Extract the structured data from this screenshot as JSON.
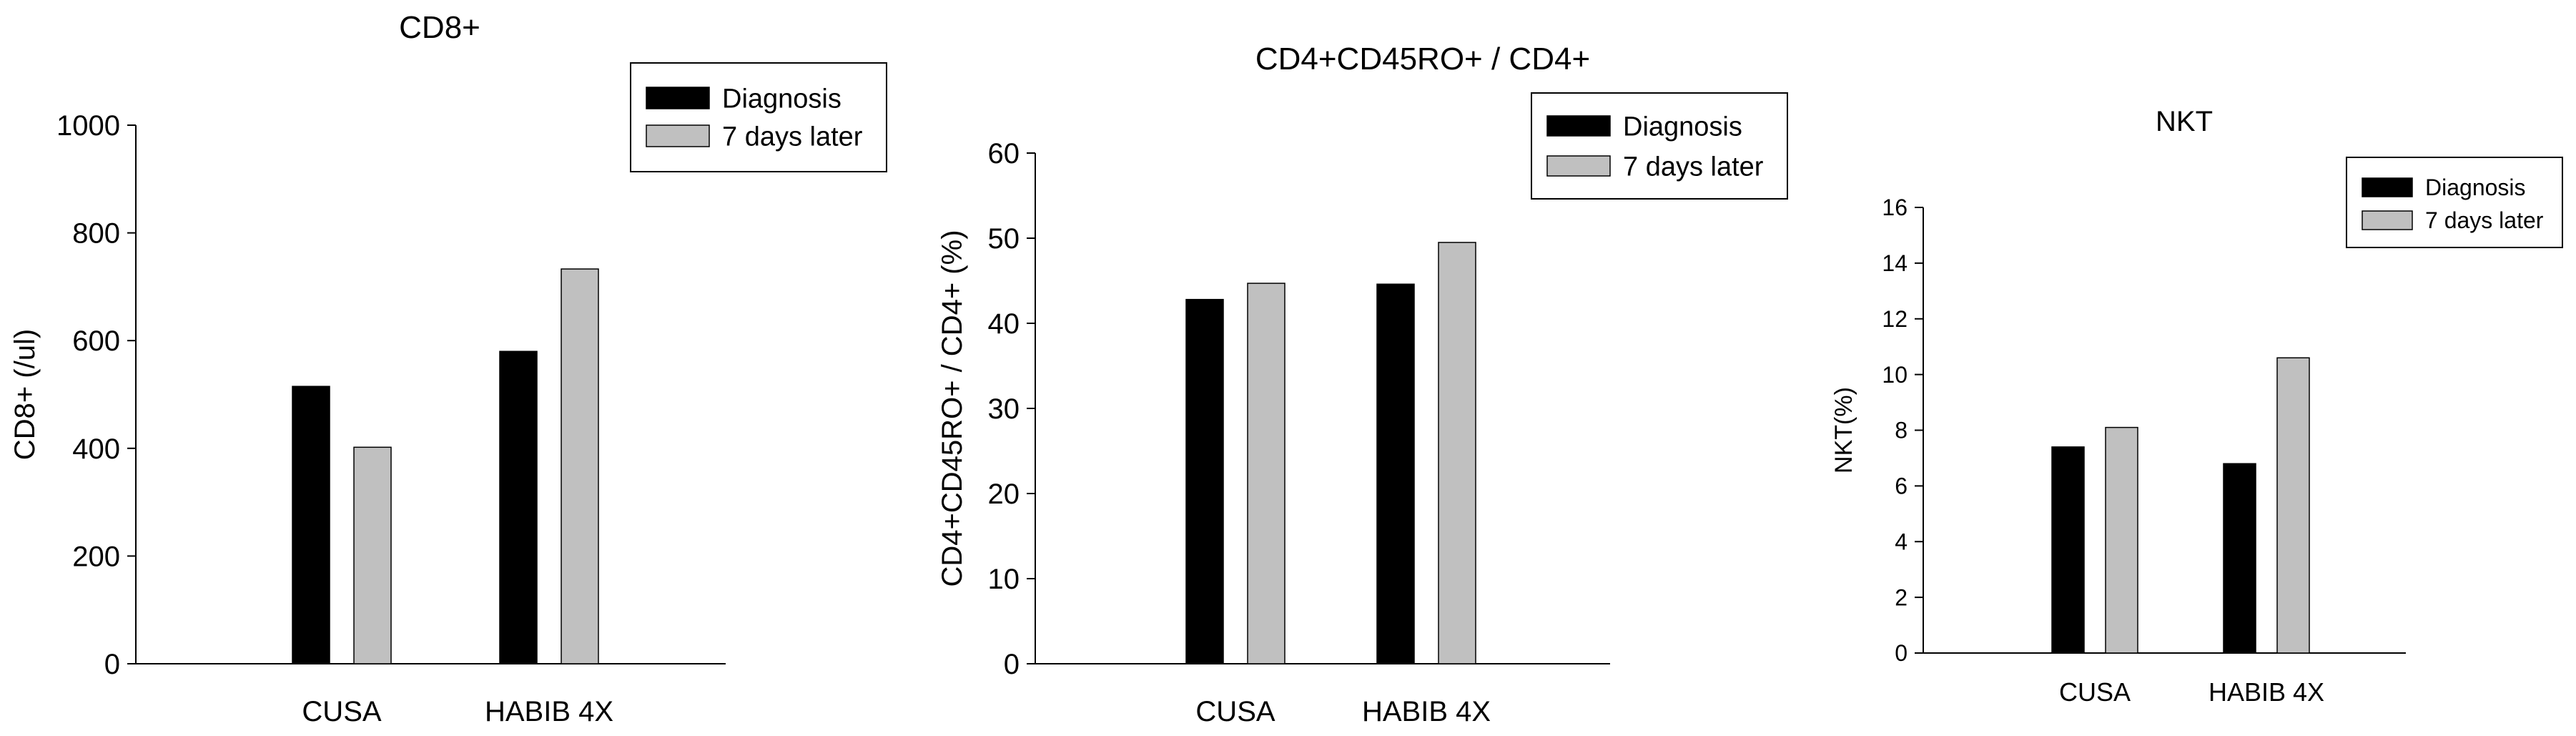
{
  "chart_data": [
    {
      "type": "bar",
      "title": "CD8+",
      "xlabel": "",
      "ylabel": "CD8+ (/ul)",
      "categories": [
        "CUSA",
        "HABIB 4X"
      ],
      "series": [
        {
          "name": "Diagnosis",
          "values": [
            515,
            580
          ],
          "color": "#000000"
        },
        {
          "name": "7 days later",
          "values": [
            402,
            733
          ],
          "color": "#c0c0c0"
        }
      ],
      "ylim": [
        0,
        1000
      ],
      "yticks": [
        0,
        200,
        400,
        600,
        800,
        1000
      ],
      "grid": false,
      "legend": "top-right"
    },
    {
      "type": "bar",
      "title": "CD4+CD45RO+ / CD4+",
      "xlabel": "",
      "ylabel": "CD4+CD45RO+ / CD4+ (%)",
      "categories": [
        "CUSA",
        "HABIB 4X"
      ],
      "series": [
        {
          "name": "Diagnosis",
          "values": [
            42.8,
            44.6
          ],
          "color": "#000000"
        },
        {
          "name": "7 days later",
          "values": [
            44.7,
            49.5
          ],
          "color": "#c0c0c0"
        }
      ],
      "ylim": [
        0,
        60
      ],
      "yticks": [
        0,
        10,
        20,
        30,
        40,
        50,
        60
      ],
      "grid": false,
      "legend": "top-right"
    },
    {
      "type": "bar",
      "title": "NKT",
      "xlabel": "",
      "ylabel": "NKT(%)",
      "categories": [
        "CUSA",
        "HABIB 4X"
      ],
      "series": [
        {
          "name": "Diagnosis",
          "values": [
            7.4,
            6.8
          ],
          "color": "#000000"
        },
        {
          "name": "7 days later",
          "values": [
            8.1,
            10.6
          ],
          "color": "#c0c0c0"
        }
      ],
      "ylim": [
        0,
        16
      ],
      "yticks": [
        0,
        2,
        4,
        6,
        8,
        10,
        12,
        14,
        16
      ],
      "grid": false,
      "legend": "top-right"
    }
  ]
}
